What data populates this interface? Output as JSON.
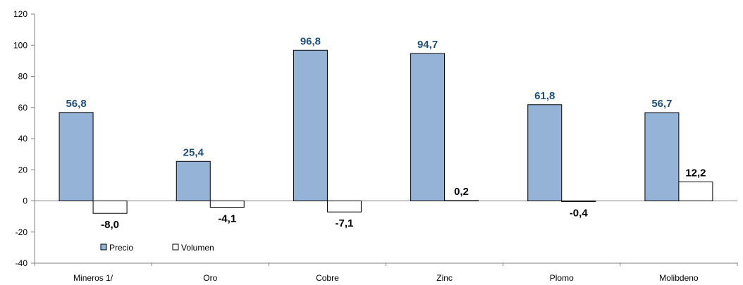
{
  "chart_data": {
    "type": "bar",
    "categories": [
      "Mineros 1/",
      "Oro",
      "Cobre",
      "Zinc",
      "Plomo",
      "Molibdeno"
    ],
    "series": [
      {
        "name": "Precio",
        "values": [
          56.8,
          25.4,
          96.8,
          94.7,
          61.8,
          56.7
        ],
        "labels": [
          "56,8",
          "25,4",
          "96,8",
          "94,7",
          "61,8",
          "56,7"
        ],
        "color": "#95B3D7"
      },
      {
        "name": "Volumen",
        "values": [
          -8.0,
          -4.1,
          -7.1,
          0.2,
          -0.4,
          12.2
        ],
        "labels": [
          "-8,0",
          "-4,1",
          "-7,1",
          "0,2",
          "-0,4",
          "12,2"
        ],
        "color": "#FFFFFF"
      }
    ],
    "ylim": [
      -40,
      120
    ],
    "yticks": [
      -40,
      -20,
      0,
      20,
      40,
      60,
      80,
      100,
      120
    ],
    "title": "",
    "xlabel": "",
    "ylabel": "",
    "legend_position": "bottom-left",
    "grid": false
  }
}
